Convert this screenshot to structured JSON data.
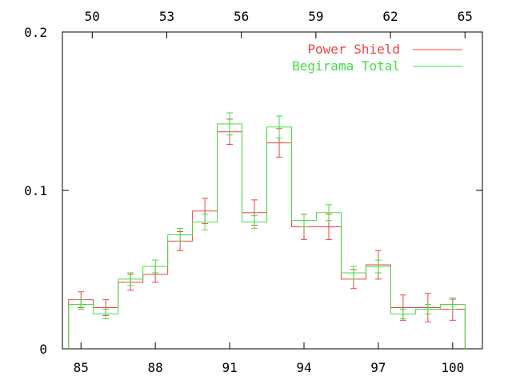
{
  "chart_data": {
    "type": "step",
    "title": "",
    "xlabel": "",
    "ylabel": "",
    "x_bottom": {
      "ticks": [
        85,
        88,
        91,
        94,
        97,
        100
      ],
      "tick_labels": [
        "85",
        "88",
        "91",
        "94",
        "97",
        "100"
      ],
      "range": [
        84.25,
        101.2
      ]
    },
    "x_top": {
      "ticks": [
        50,
        53,
        56,
        59,
        62,
        65
      ],
      "tick_labels": [
        "50",
        "53",
        "56",
        "59",
        "62",
        "65"
      ],
      "range": [
        48.8,
        65.7
      ]
    },
    "y": {
      "ticks": [
        0,
        0.1,
        0.2
      ],
      "tick_labels": [
        "0",
        "0.1",
        "0.2"
      ],
      "range": [
        0,
        0.2
      ]
    },
    "grid": false,
    "legend_position": "top-right",
    "bins": [
      [
        84.5,
        85.5
      ],
      [
        85.5,
        86.5
      ],
      [
        86.5,
        87.5
      ],
      [
        87.5,
        88.5
      ],
      [
        88.5,
        89.5
      ],
      [
        89.5,
        90.5
      ],
      [
        90.5,
        91.5
      ],
      [
        91.5,
        92.5
      ],
      [
        92.5,
        93.5
      ],
      [
        93.5,
        94.5
      ],
      [
        94.5,
        95.5
      ],
      [
        95.5,
        96.5
      ],
      [
        96.5,
        97.5
      ],
      [
        97.5,
        98.5
      ],
      [
        98.5,
        99.5
      ],
      [
        99.5,
        100.5
      ]
    ],
    "series": [
      {
        "name": "Power Shield",
        "color": "#ee4444",
        "values": [
          0.031,
          0.026,
          0.042,
          0.047,
          0.068,
          0.087,
          0.137,
          0.086,
          0.13,
          0.077,
          0.077,
          0.044,
          0.053,
          0.026,
          0.026,
          0.025
        ],
        "errors": [
          0.005,
          0.005,
          0.005,
          0.005,
          0.006,
          0.008,
          0.008,
          0.008,
          0.009,
          0.008,
          0.008,
          0.006,
          0.009,
          0.008,
          0.009,
          0.007
        ]
      },
      {
        "name": "Begirama Total",
        "color": "#44dd44",
        "values": [
          0.028,
          0.022,
          0.044,
          0.052,
          0.072,
          0.08,
          0.142,
          0.08,
          0.14,
          0.081,
          0.086,
          0.048,
          0.052,
          0.022,
          0.025,
          0.028
        ],
        "errors": [
          0.003,
          0.003,
          0.004,
          0.004,
          0.004,
          0.005,
          0.007,
          0.004,
          0.007,
          0.004,
          0.005,
          0.004,
          0.004,
          0.003,
          0.003,
          0.003
        ]
      }
    ]
  }
}
